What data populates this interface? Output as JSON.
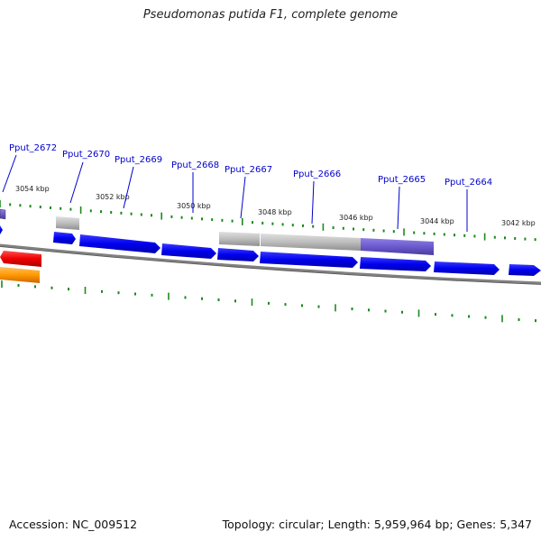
{
  "title": "Pseudomonas putida F1, complete genome",
  "accession": "Accession: NC_009512",
  "topology": "Topology: circular; Length: 5,959,964 bp; Genes: 5,347",
  "colors": {
    "backbone": "#808080",
    "tick": "#1a8a1a",
    "gene_forward": "#0000ee",
    "gene_gray": "#b8b8b8",
    "gene_purple": "#6a5acd",
    "gene_red": "#ee0000",
    "gene_orange": "#ff9900",
    "label": "#0000cc"
  },
  "kbp_labels": [
    "3054 kbp",
    "3052 kbp",
    "3050 kbp",
    "3048 kbp",
    "3046 kbp",
    "3044 kbp",
    "3042 kbp"
  ],
  "gene_labels": [
    "Pput_2672",
    "Pput_2670",
    "Pput_2669",
    "Pput_2668",
    "Pput_2667",
    "Pput_2666",
    "Pput_2665",
    "Pput_2664"
  ]
}
